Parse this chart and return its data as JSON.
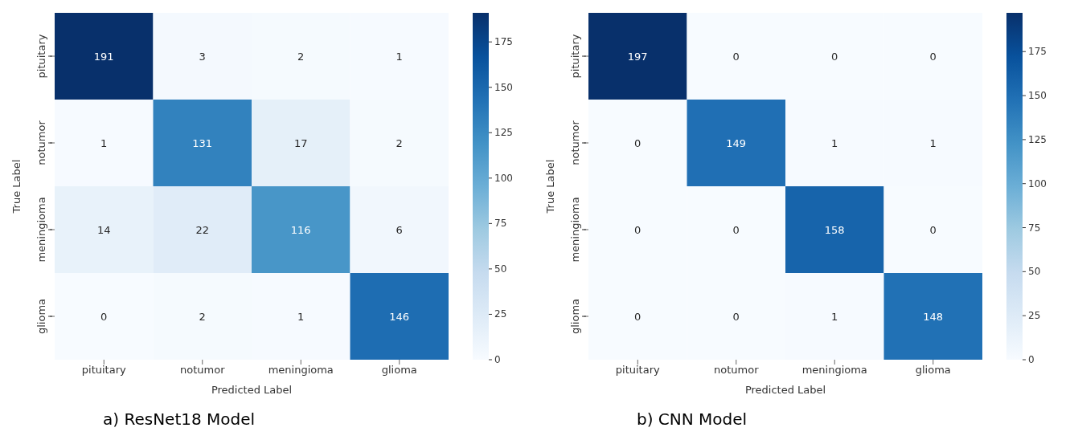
{
  "chart_data": [
    {
      "type": "heatmap",
      "categories": [
        "pituitary",
        "notumor",
        "meningioma",
        "glioma"
      ],
      "y_categories": [
        "pituitary",
        "notumor",
        "meningioma",
        "glioma"
      ],
      "cells": [
        [
          191,
          3,
          2,
          1
        ],
        [
          1,
          131,
          17,
          2
        ],
        [
          14,
          22,
          116,
          6
        ],
        [
          0,
          2,
          1,
          146
        ]
      ],
      "xlabel": "Predicted Label",
      "ylabel": "True Label",
      "clim": [
        0,
        191
      ],
      "cticks": [
        0,
        25,
        50,
        75,
        100,
        125,
        150,
        175
      ],
      "data_labels": true,
      "annotations": [
        "a) ResNet18 Model"
      ]
    },
    {
      "type": "heatmap",
      "categories": [
        "pituitary",
        "notumor",
        "meningioma",
        "glioma"
      ],
      "y_categories": [
        "pituitary",
        "notumor",
        "meningioma",
        "glioma"
      ],
      "cells": [
        [
          197,
          0,
          0,
          0
        ],
        [
          0,
          149,
          1,
          1
        ],
        [
          0,
          0,
          158,
          0
        ],
        [
          0,
          0,
          1,
          148
        ]
      ],
      "xlabel": "Predicted Label",
      "ylabel": "True Label",
      "clim": [
        0,
        197
      ],
      "cticks": [
        0,
        25,
        50,
        75,
        100,
        125,
        150,
        175
      ],
      "data_labels": true,
      "annotations": [
        "b) CNN Model"
      ]
    }
  ]
}
